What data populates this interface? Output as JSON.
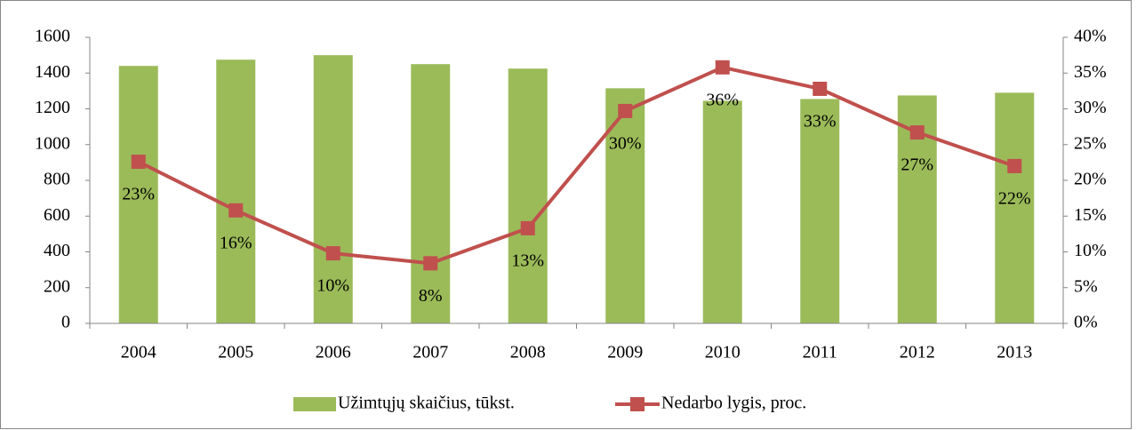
{
  "chart_data": {
    "type": "bar-line",
    "categories": [
      "2004",
      "2005",
      "2006",
      "2007",
      "2008",
      "2009",
      "2010",
      "2011",
      "2012",
      "2013"
    ],
    "series": [
      {
        "name": "Užimtųjų skaičius, tūkst.",
        "type": "bar",
        "color": "#9bbb59",
        "values": [
          1440,
          1475,
          1500,
          1450,
          1425,
          1315,
          1245,
          1255,
          1275,
          1290
        ]
      },
      {
        "name": "Nedarbo lygis, proc.",
        "type": "line",
        "axis": "y2",
        "color": "#c0504d",
        "values": [
          22.6,
          15.8,
          9.8,
          8.4,
          13.3,
          29.7,
          35.8,
          32.8,
          26.7,
          22.0
        ],
        "value_labels": [
          "23%",
          "16%",
          "10%",
          "8%",
          "13%",
          "30%",
          "36%",
          "33%",
          "27%",
          "22%"
        ]
      }
    ],
    "ylim": [
      0,
      1600
    ],
    "yticks": [
      0,
      200,
      400,
      600,
      800,
      1000,
      1200,
      1400,
      1600
    ],
    "y2lim": [
      0,
      40
    ],
    "y2ticks": [
      {
        "value": 0,
        "label": "0%"
      },
      {
        "value": 5,
        "label": "5%"
      },
      {
        "value": 10,
        "label": "10%"
      },
      {
        "value": 15,
        "label": "15%"
      },
      {
        "value": 20,
        "label": "20%"
      },
      {
        "value": 25,
        "label": "25%"
      },
      {
        "value": 30,
        "label": "30%"
      },
      {
        "value": 35,
        "label": "35%"
      },
      {
        "value": 40,
        "label": "40%"
      }
    ],
    "legend": "bottom",
    "grid": false
  }
}
